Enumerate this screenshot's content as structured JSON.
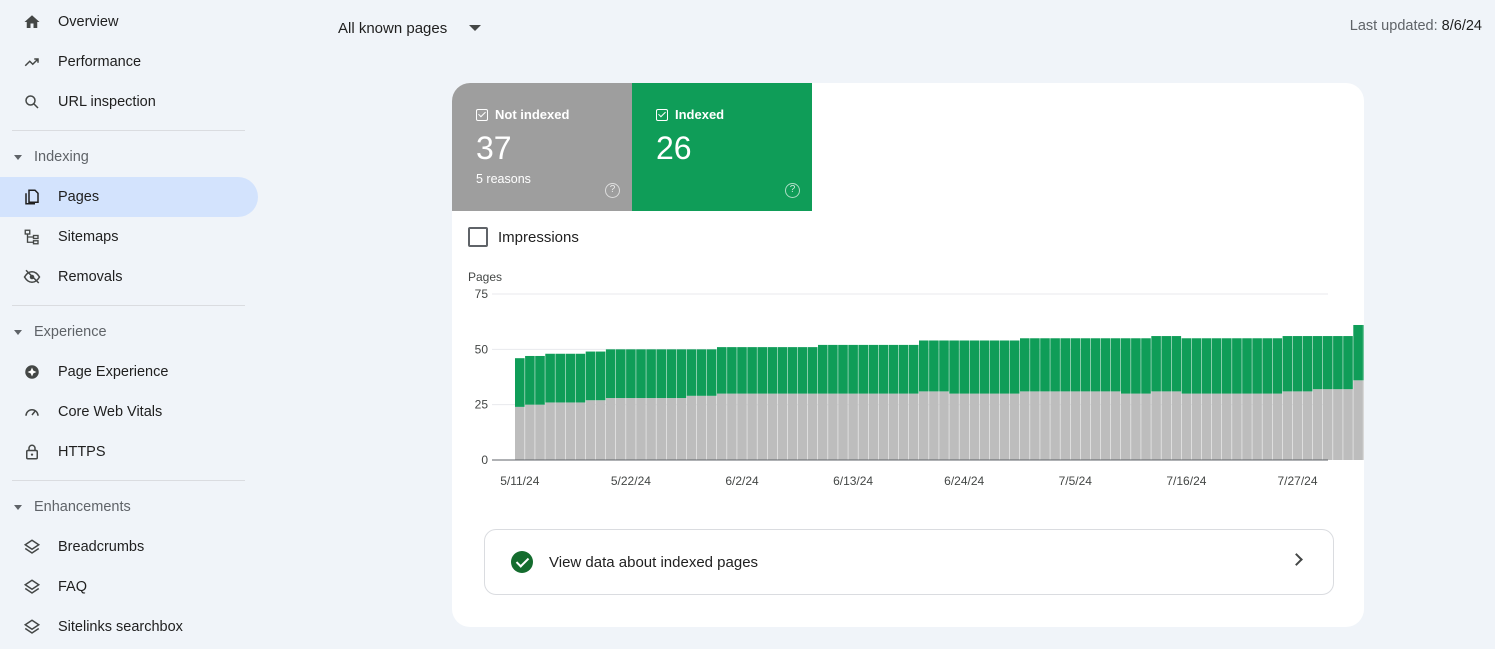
{
  "sidebar": {
    "overview": "Overview",
    "performance": "Performance",
    "url_inspection": "URL inspection",
    "indexing_header": "Indexing",
    "pages": "Pages",
    "sitemaps": "Sitemaps",
    "removals": "Removals",
    "experience_header": "Experience",
    "page_experience": "Page Experience",
    "core_web_vitals": "Core Web Vitals",
    "https": "HTTPS",
    "enhancements_header": "Enhancements",
    "breadcrumbs": "Breadcrumbs",
    "faq": "FAQ",
    "sitelinks": "Sitelinks searchbox"
  },
  "header": {
    "filter_label": "All known pages",
    "last_updated_label": "Last updated:",
    "last_updated_value": "8/6/24"
  },
  "tiles": {
    "not_indexed": {
      "label": "Not indexed",
      "value": "37",
      "sub": "5 reasons",
      "color": "#9e9e9e"
    },
    "indexed": {
      "label": "Indexed",
      "value": "26",
      "color": "#0f9d58"
    }
  },
  "impressions_label": "Impressions",
  "view_link": "View data about indexed pages",
  "chart_data": {
    "type": "bar",
    "stacked": true,
    "ylabel": "Pages",
    "ylim": [
      0,
      75
    ],
    "yticks": [
      "0",
      "25",
      "50",
      "75"
    ],
    "xtick_labels": [
      "5/11/24",
      "5/22/24",
      "6/2/24",
      "6/13/24",
      "6/24/24",
      "7/5/24",
      "7/16/24",
      "7/27/24"
    ],
    "xtick_index": [
      0,
      11,
      22,
      33,
      44,
      55,
      66,
      77
    ],
    "series": [
      {
        "name": "Not indexed",
        "color": "#bdbdbd",
        "values": [
          24,
          25,
          25,
          26,
          26,
          26,
          26,
          27,
          27,
          28,
          28,
          28,
          28,
          28,
          28,
          28,
          28,
          29,
          29,
          29,
          30,
          30,
          30,
          30,
          30,
          30,
          30,
          30,
          30,
          30,
          30,
          30,
          30,
          30,
          30,
          30,
          30,
          30,
          30,
          30,
          31,
          31,
          31,
          30,
          30,
          30,
          30,
          30,
          30,
          30,
          31,
          31,
          31,
          31,
          31,
          31,
          31,
          31,
          31,
          31,
          30,
          30,
          30,
          31,
          31,
          31,
          30,
          30,
          30,
          30,
          30,
          30,
          30,
          30,
          30,
          30,
          31,
          31,
          31,
          32,
          32,
          32,
          32,
          36,
          36,
          36
        ]
      },
      {
        "name": "Indexed",
        "color": "#0f9d58",
        "values": [
          22,
          22,
          22,
          22,
          22,
          22,
          22,
          22,
          22,
          22,
          22,
          22,
          22,
          22,
          22,
          22,
          22,
          21,
          21,
          21,
          21,
          21,
          21,
          21,
          21,
          21,
          21,
          21,
          21,
          21,
          22,
          22,
          22,
          22,
          22,
          22,
          22,
          22,
          22,
          22,
          23,
          23,
          23,
          24,
          24,
          24,
          24,
          24,
          24,
          24,
          24,
          24,
          24,
          24,
          24,
          24,
          24,
          24,
          24,
          24,
          25,
          25,
          25,
          25,
          25,
          25,
          25,
          25,
          25,
          25,
          25,
          25,
          25,
          25,
          25,
          25,
          25,
          25,
          25,
          24,
          24,
          24,
          24,
          25,
          25,
          25
        ]
      }
    ]
  }
}
